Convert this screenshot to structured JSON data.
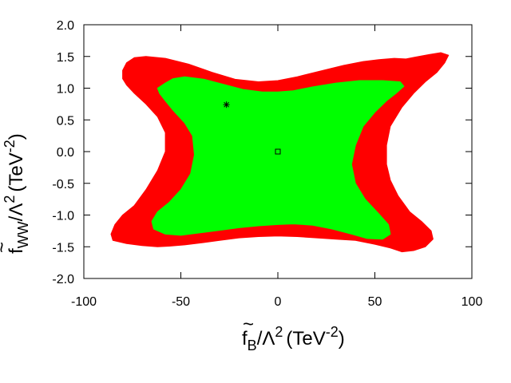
{
  "chart_data": {
    "type": "area",
    "title": "",
    "x_label": {
      "main": "f",
      "tilde": "~",
      "sub": "B",
      "rest": "/Λ",
      "sup": "2",
      "unit": "(TeV",
      "unit_sup": "-2",
      "unit_close": ")"
    },
    "y_label": {
      "main": "f",
      "tilde": "~",
      "sub": "WW",
      "rest": "/Λ",
      "sup": "2",
      "unit": "(TeV",
      "unit_sup": "-2",
      "unit_close": ")"
    },
    "xlim": [
      -100,
      100
    ],
    "ylim": [
      -2.0,
      2.0
    ],
    "x_ticks": [
      -100,
      -50,
      0,
      50,
      100
    ],
    "x_tick_labels": [
      "-100",
      "-50",
      "0",
      "50",
      "100"
    ],
    "y_ticks": [
      -2.0,
      -1.5,
      -1.0,
      -0.5,
      0.0,
      0.5,
      1.0,
      1.5,
      2.0
    ],
    "y_tick_labels": [
      "-2.0",
      "-1.5",
      "-1.0",
      "-0.5",
      "0.0",
      "0.5",
      "1.0",
      "1.5",
      "2.0"
    ],
    "grid": false,
    "series": [
      {
        "color": "#ff0000",
        "points": [
          [
            -78,
            1.4
          ],
          [
            -74,
            1.48
          ],
          [
            -68,
            1.5
          ],
          [
            -58,
            1.47
          ],
          [
            -46,
            1.38
          ],
          [
            -34,
            1.25
          ],
          [
            -22,
            1.14
          ],
          [
            -10,
            1.1
          ],
          [
            0,
            1.12
          ],
          [
            10,
            1.18
          ],
          [
            22,
            1.27
          ],
          [
            34,
            1.36
          ],
          [
            44,
            1.42
          ],
          [
            52,
            1.45
          ],
          [
            60,
            1.47
          ],
          [
            66,
            1.46
          ],
          [
            71,
            1.49
          ],
          [
            78,
            1.53
          ],
          [
            84,
            1.56
          ],
          [
            88,
            1.52
          ],
          [
            86,
            1.4
          ],
          [
            82,
            1.25
          ],
          [
            76,
            1.1
          ],
          [
            70,
            0.92
          ],
          [
            64,
            0.7
          ],
          [
            58,
            0.4
          ],
          [
            56,
            0.1
          ],
          [
            56,
            -0.2
          ],
          [
            58,
            -0.45
          ],
          [
            62,
            -0.7
          ],
          [
            68,
            -0.95
          ],
          [
            74,
            -1.1
          ],
          [
            79,
            -1.25
          ],
          [
            80,
            -1.38
          ],
          [
            76,
            -1.5
          ],
          [
            70,
            -1.56
          ],
          [
            64,
            -1.58
          ],
          [
            58,
            -1.52
          ],
          [
            50,
            -1.46
          ],
          [
            40,
            -1.4
          ],
          [
            30,
            -1.38
          ],
          [
            20,
            -1.36
          ],
          [
            10,
            -1.34
          ],
          [
            0,
            -1.33
          ],
          [
            -10,
            -1.34
          ],
          [
            -20,
            -1.36
          ],
          [
            -30,
            -1.4
          ],
          [
            -40,
            -1.44
          ],
          [
            -48,
            -1.47
          ],
          [
            -56,
            -1.49
          ],
          [
            -62,
            -1.5
          ],
          [
            -70,
            -1.48
          ],
          [
            -78,
            -1.45
          ],
          [
            -85,
            -1.4
          ],
          [
            -86,
            -1.3
          ],
          [
            -84,
            -1.15
          ],
          [
            -80,
            -1.0
          ],
          [
            -74,
            -0.85
          ],
          [
            -68,
            -0.6
          ],
          [
            -62,
            -0.3
          ],
          [
            -58,
            0.0
          ],
          [
            -58,
            0.3
          ],
          [
            -62,
            0.55
          ],
          [
            -68,
            0.75
          ],
          [
            -74,
            0.92
          ],
          [
            -78,
            1.05
          ],
          [
            -80,
            1.15
          ],
          [
            -80,
            1.28
          ]
        ]
      },
      {
        "color": "#00ff00",
        "points": [
          [
            -58,
            1.08
          ],
          [
            -54,
            1.15
          ],
          [
            -48,
            1.18
          ],
          [
            -38,
            1.14
          ],
          [
            -28,
            1.06
          ],
          [
            -18,
            0.98
          ],
          [
            -8,
            0.94
          ],
          [
            0,
            0.94
          ],
          [
            8,
            0.96
          ],
          [
            18,
            1.02
          ],
          [
            30,
            1.08
          ],
          [
            42,
            1.12
          ],
          [
            54,
            1.12
          ],
          [
            63,
            1.1
          ],
          [
            65,
            1.03
          ],
          [
            61,
            0.92
          ],
          [
            56,
            0.8
          ],
          [
            50,
            0.62
          ],
          [
            44,
            0.4
          ],
          [
            40,
            0.1
          ],
          [
            38,
            -0.2
          ],
          [
            40,
            -0.5
          ],
          [
            45,
            -0.75
          ],
          [
            52,
            -0.98
          ],
          [
            57,
            -1.15
          ],
          [
            58,
            -1.3
          ],
          [
            54,
            -1.38
          ],
          [
            46,
            -1.37
          ],
          [
            38,
            -1.3
          ],
          [
            28,
            -1.22
          ],
          [
            18,
            -1.16
          ],
          [
            8,
            -1.14
          ],
          [
            0,
            -1.15
          ],
          [
            -10,
            -1.17
          ],
          [
            -20,
            -1.2
          ],
          [
            -30,
            -1.24
          ],
          [
            -40,
            -1.28
          ],
          [
            -50,
            -1.32
          ],
          [
            -58,
            -1.3
          ],
          [
            -64,
            -1.22
          ],
          [
            -65,
            -1.1
          ],
          [
            -62,
            -0.95
          ],
          [
            -56,
            -0.8
          ],
          [
            -50,
            -0.6
          ],
          [
            -45,
            -0.35
          ],
          [
            -43,
            -0.05
          ],
          [
            -44,
            0.25
          ],
          [
            -48,
            0.45
          ],
          [
            -54,
            0.65
          ],
          [
            -58,
            0.8
          ],
          [
            -61,
            0.92
          ],
          [
            -62,
            1.0
          ]
        ]
      }
    ],
    "markers": [
      {
        "shape": "star",
        "x": -26.5,
        "y": 0.74,
        "color": "#000000"
      },
      {
        "shape": "square",
        "x": 0,
        "y": 0.0,
        "color": "#000000"
      }
    ]
  }
}
